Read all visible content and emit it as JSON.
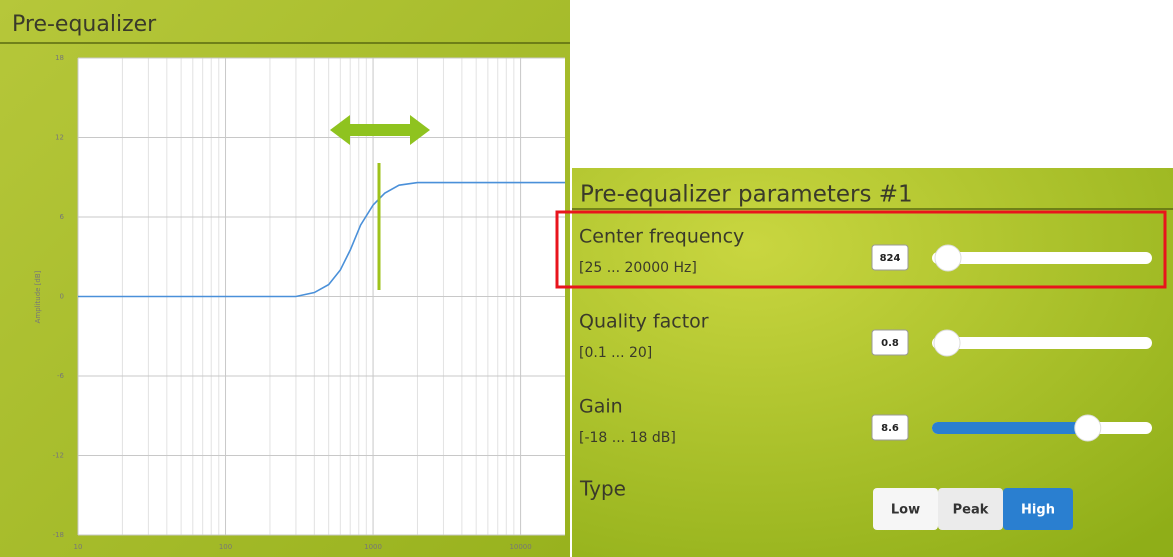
{
  "chart_data": {
    "type": "line",
    "title": "Pre-equalizer",
    "y_label": "Amplitude [dB]",
    "x": [
      10,
      100,
      200,
      300,
      400,
      500,
      600,
      700,
      824,
      1000,
      1200,
      1500,
      2000,
      3000,
      5000,
      10000,
      20000
    ],
    "values": [
      0,
      0,
      0,
      0,
      0.3,
      0.9,
      2.0,
      3.5,
      5.4,
      6.9,
      7.8,
      8.4,
      8.6,
      8.6,
      8.6,
      8.6,
      8.6
    ],
    "color": "#4a90d9",
    "log_x": true,
    "grid": true,
    "xlim": [
      10,
      20000
    ],
    "xticks": [
      10,
      100,
      1000,
      10000
    ],
    "ylim": [
      -18,
      18
    ],
    "yticks": [
      -18,
      -12,
      -6,
      0,
      6,
      12,
      18
    ]
  },
  "parameters_panel": {
    "title": "Pre-equalizer parameters #1",
    "parameters": [
      {
        "label": "Center frequency",
        "range": "[25 ... 20000 Hz]",
        "value": 824,
        "min": 25,
        "max": 20000,
        "highlighted": true
      },
      {
        "label": "Quality factor",
        "range": "[0.1 ... 20]",
        "value": 0.8,
        "min": 0.1,
        "max": 20
      },
      {
        "label": "Gain",
        "range": "[-18 ... 18 dB]",
        "value": 8.6,
        "min": -18,
        "max": 18,
        "filled": true
      }
    ],
    "type": {
      "label": "Type",
      "options": [
        "Low",
        "Peak",
        "High"
      ],
      "selected": 2
    }
  }
}
